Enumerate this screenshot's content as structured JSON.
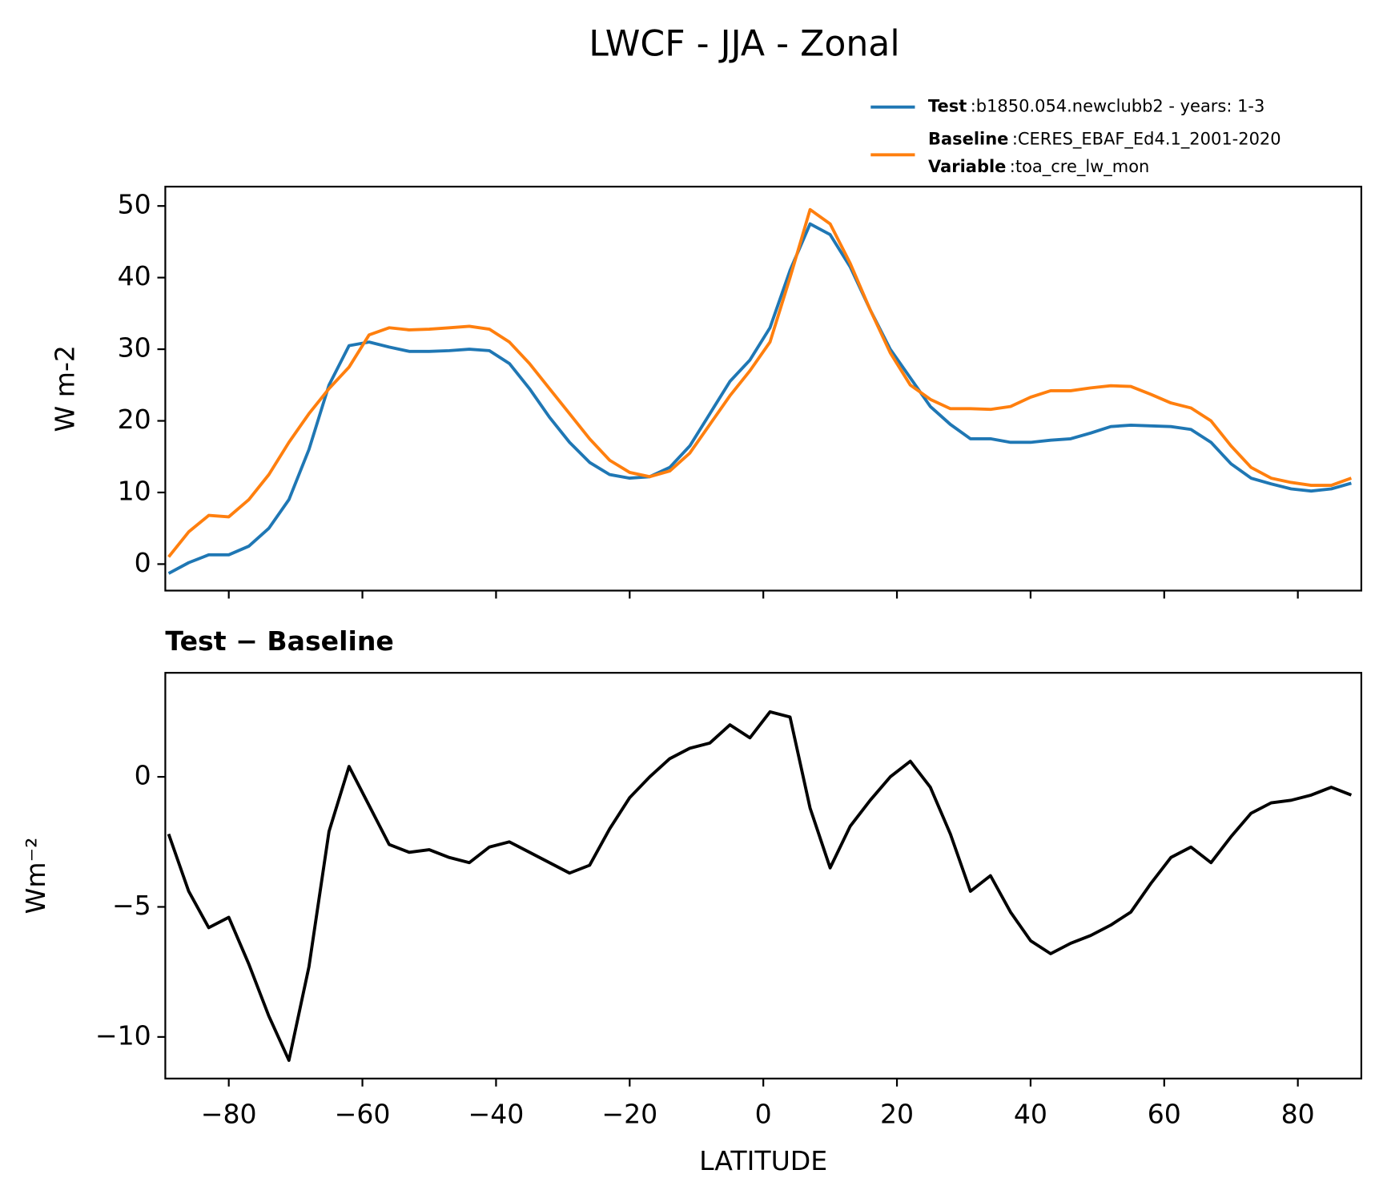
{
  "chart_data": [
    {
      "type": "line",
      "title": "LWCF - JJA - Zonal",
      "ylabel": "W m-2",
      "legend_separator": ":",
      "x": [
        -89,
        -86,
        -83,
        -80,
        -77,
        -74,
        -71,
        -68,
        -65,
        -62,
        -59,
        -56,
        -53,
        -50,
        -47,
        -44,
        -41,
        -38,
        -35,
        -32,
        -29,
        -26,
        -23,
        -20,
        -17,
        -14,
        -11,
        -8,
        -5,
        -2,
        1,
        4,
        7,
        10,
        13,
        16,
        19,
        22,
        25,
        28,
        31,
        34,
        37,
        40,
        43,
        46,
        49,
        52,
        55,
        58,
        61,
        64,
        67,
        70,
        73,
        76,
        79,
        82,
        85,
        88
      ],
      "series": [
        {
          "name": "Test",
          "description": "b1850.054.newclubb2 - years: 1-3",
          "color": "#1f77b4",
          "values": [
            -1.3,
            0.2,
            1.3,
            1.3,
            2.5,
            5,
            9,
            16,
            25,
            30.5,
            31,
            30.3,
            29.7,
            29.7,
            29.8,
            30,
            29.8,
            28,
            24.5,
            20.5,
            17,
            14.2,
            12.5,
            12,
            12.2,
            13.5,
            16.5,
            21,
            25.5,
            28.5,
            33,
            41,
            47.5,
            46,
            41.5,
            35.5,
            30,
            26,
            22,
            19.5,
            17.5,
            17.5,
            17,
            17,
            17.3,
            17.5,
            18.3,
            19.2,
            19.4,
            19.3,
            19.2,
            18.8,
            17,
            14,
            12,
            11.2,
            10.5,
            10.2,
            10.5,
            11.3
          ]
        },
        {
          "name": "Baseline",
          "description": "CERES_EBAF_Ed4.1_2001-2020",
          "color": "#ff7f0e",
          "extra_name": "Variable",
          "extra_description": "toa_cre_lw_mon",
          "values": [
            1,
            4.5,
            6.8,
            6.6,
            9,
            12.5,
            17,
            21,
            24.5,
            27.5,
            32,
            33,
            32.7,
            32.8,
            33,
            33.2,
            32.8,
            31,
            28,
            24.5,
            21,
            17.5,
            14.5,
            12.8,
            12.2,
            13,
            15.5,
            19.5,
            23.5,
            27,
            31,
            40,
            49.5,
            47.5,
            42,
            35.5,
            29.5,
            25,
            23,
            21.7,
            21.7,
            21.6,
            22,
            23.3,
            24.2,
            24.2,
            24.6,
            24.9,
            24.8,
            23.7,
            22.5,
            21.8,
            20,
            16.5,
            13.5,
            12,
            11.4,
            11,
            11,
            12
          ]
        }
      ],
      "xlim": [
        -89.5,
        89.5
      ],
      "ylim": [
        -3.7,
        52.7
      ],
      "xticks": [
        -80,
        -60,
        -40,
        -20,
        0,
        20,
        40,
        60,
        80
      ],
      "show_xtick_labels": false,
      "yticks": [
        0,
        10,
        20,
        30,
        40,
        50
      ]
    },
    {
      "type": "line",
      "subtitle": "Test − Baseline",
      "ylabel": "Wm⁻²",
      "xlabel": "LATITUDE",
      "x": [
        -89,
        -86,
        -83,
        -80,
        -77,
        -74,
        -71,
        -68,
        -65,
        -62,
        -59,
        -56,
        -53,
        -50,
        -47,
        -44,
        -41,
        -38,
        -35,
        -32,
        -29,
        -26,
        -23,
        -20,
        -17,
        -14,
        -11,
        -8,
        -5,
        -2,
        1,
        4,
        7,
        10,
        13,
        16,
        19,
        22,
        25,
        28,
        31,
        34,
        37,
        40,
        43,
        46,
        49,
        52,
        55,
        58,
        61,
        64,
        67,
        70,
        73,
        76,
        79,
        82,
        85,
        88
      ],
      "series": [
        {
          "color": "#000000",
          "values": [
            -2.2,
            -4.4,
            -5.8,
            -5.4,
            -7.2,
            -9.2,
            -10.9,
            -7.3,
            -2.1,
            0.4,
            -1.1,
            -2.6,
            -2.9,
            -2.8,
            -3.1,
            -3.3,
            -2.7,
            -2.5,
            -2.9,
            -3.3,
            -3.7,
            -3.4,
            -2.0,
            -0.8,
            0.0,
            0.7,
            1.1,
            1.3,
            2.0,
            1.5,
            2.5,
            2.3,
            -1.2,
            -3.5,
            -1.9,
            -0.9,
            0.0,
            0.6,
            -0.4,
            -2.2,
            -4.4,
            -3.8,
            -5.2,
            -6.3,
            -6.8,
            -6.4,
            -6.1,
            -5.7,
            -5.2,
            -4.1,
            -3.1,
            -2.7,
            -3.3,
            -2.3,
            -1.4,
            -1.0,
            -0.9,
            -0.7,
            -0.4,
            -0.7
          ]
        }
      ],
      "xlim": [
        -89.5,
        89.5
      ],
      "ylim": [
        -11.6,
        4.0
      ],
      "xticks": [
        {
          "value": -80,
          "label": "−80"
        },
        {
          "value": -60,
          "label": "−60"
        },
        {
          "value": -40,
          "label": "−40"
        },
        {
          "value": -20,
          "label": "−20"
        },
        0,
        20,
        40,
        60,
        80
      ],
      "show_xtick_labels": true,
      "yticks": [
        {
          "value": -10,
          "label": "−10"
        },
        {
          "value": -5,
          "label": "−5"
        },
        0
      ]
    }
  ]
}
